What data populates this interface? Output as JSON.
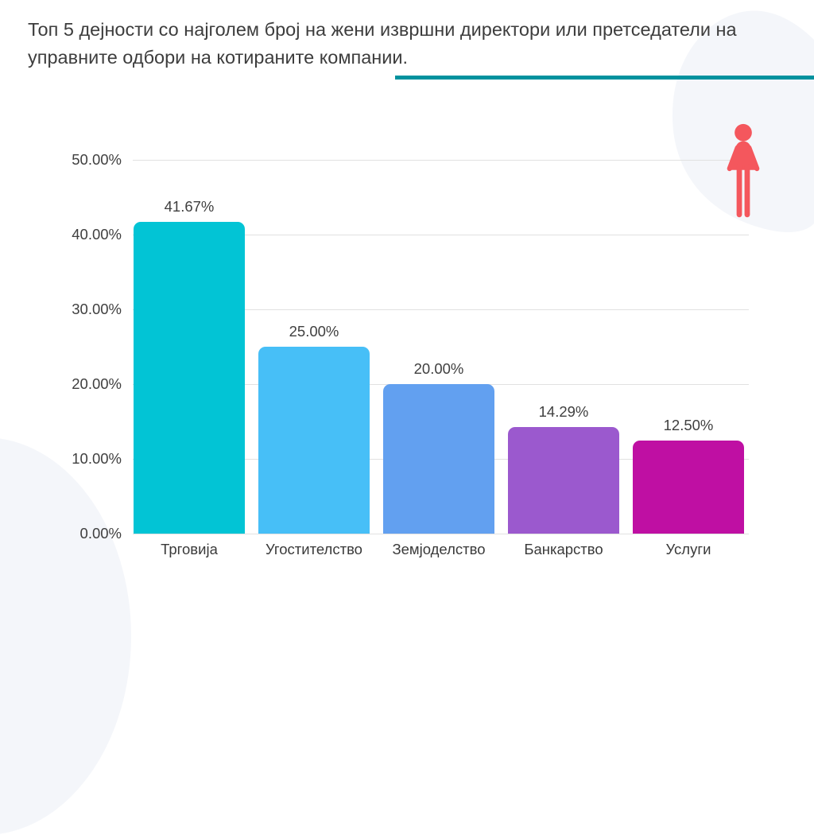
{
  "header": {
    "title": "Топ 5 дејности со најголем број на жени извршни директори или претседатели на управните одбори на котираните компании.",
    "accent_color": "#00929e"
  },
  "decor": {
    "corner_blob_color": "#f4f6fa",
    "woman_icon": "woman-pictogram",
    "woman_icon_color": "#f4575d"
  },
  "chart_data": {
    "type": "bar",
    "title": "Топ 5 дејности со најголем број на жени извршни директори или претседатели на управните одбори на котираните компании.",
    "categories": [
      "Трговија",
      "Угостителство",
      "Земјоделство",
      "Банкарство",
      "Услуги"
    ],
    "values": [
      41.67,
      25.0,
      20.0,
      14.29,
      12.5
    ],
    "value_labels": [
      "41.67%",
      "25.00%",
      "20.00%",
      "14.29%",
      "12.50%"
    ],
    "bar_colors": [
      "#02c4d5",
      "#47bff7",
      "#62a0f0",
      "#9b59ce",
      "#bf0fa3"
    ],
    "y_axis": {
      "ticks": [
        0,
        10,
        20,
        30,
        40,
        50
      ],
      "tick_labels": [
        "0.00%",
        "10.00%",
        "20.00%",
        "30.00%",
        "40.00%",
        "50.00%"
      ],
      "range": [
        0,
        50
      ]
    },
    "grid": true,
    "legend": false
  }
}
